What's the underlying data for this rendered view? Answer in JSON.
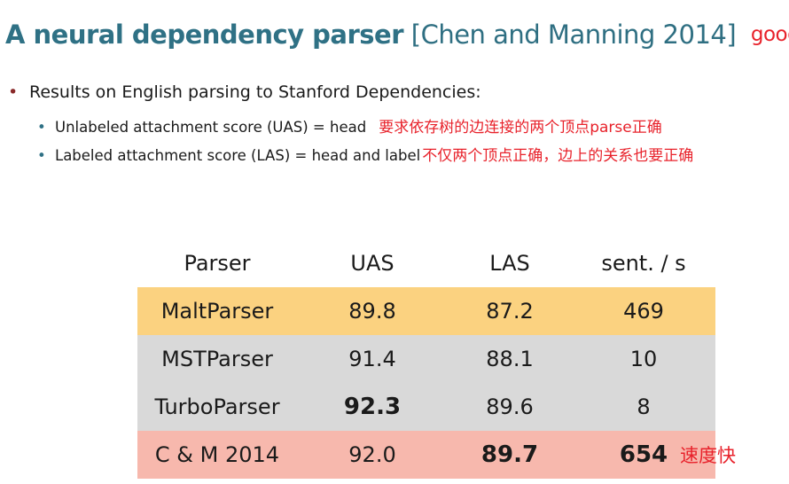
{
  "title": {
    "main": "A neural dependency parser",
    "citation": "[Chen and Manning 2014]",
    "annotation": "good"
  },
  "bullets": {
    "level1": "Results on English parsing to Stanford Dependencies:",
    "uas": {
      "text": "Unlabeled attachment score (UAS) = head",
      "annotation": "要求依存树的边连接的两个顶点parse正确"
    },
    "las": {
      "text": "Labeled attachment score (LAS) = head and label",
      "annotation": "不仅两个顶点正确，边上的关系也要正确"
    }
  },
  "table": {
    "headers": [
      "Parser",
      "UAS",
      "LAS",
      "sent. / s"
    ],
    "rows": [
      [
        "MaltParser",
        "89.8",
        "87.2",
        "469"
      ],
      [
        "MSTParser",
        "91.4",
        "88.1",
        "10"
      ],
      [
        "TurboParser",
        "92.3",
        "89.6",
        "8"
      ],
      [
        "C & M 2014",
        "92.0",
        "89.7",
        "654"
      ]
    ],
    "row_colors": [
      "#fbd280",
      "#d9d9d9",
      "#d9d9d9",
      "#f7b8ad"
    ],
    "speed_annotation": "速度快"
  }
}
